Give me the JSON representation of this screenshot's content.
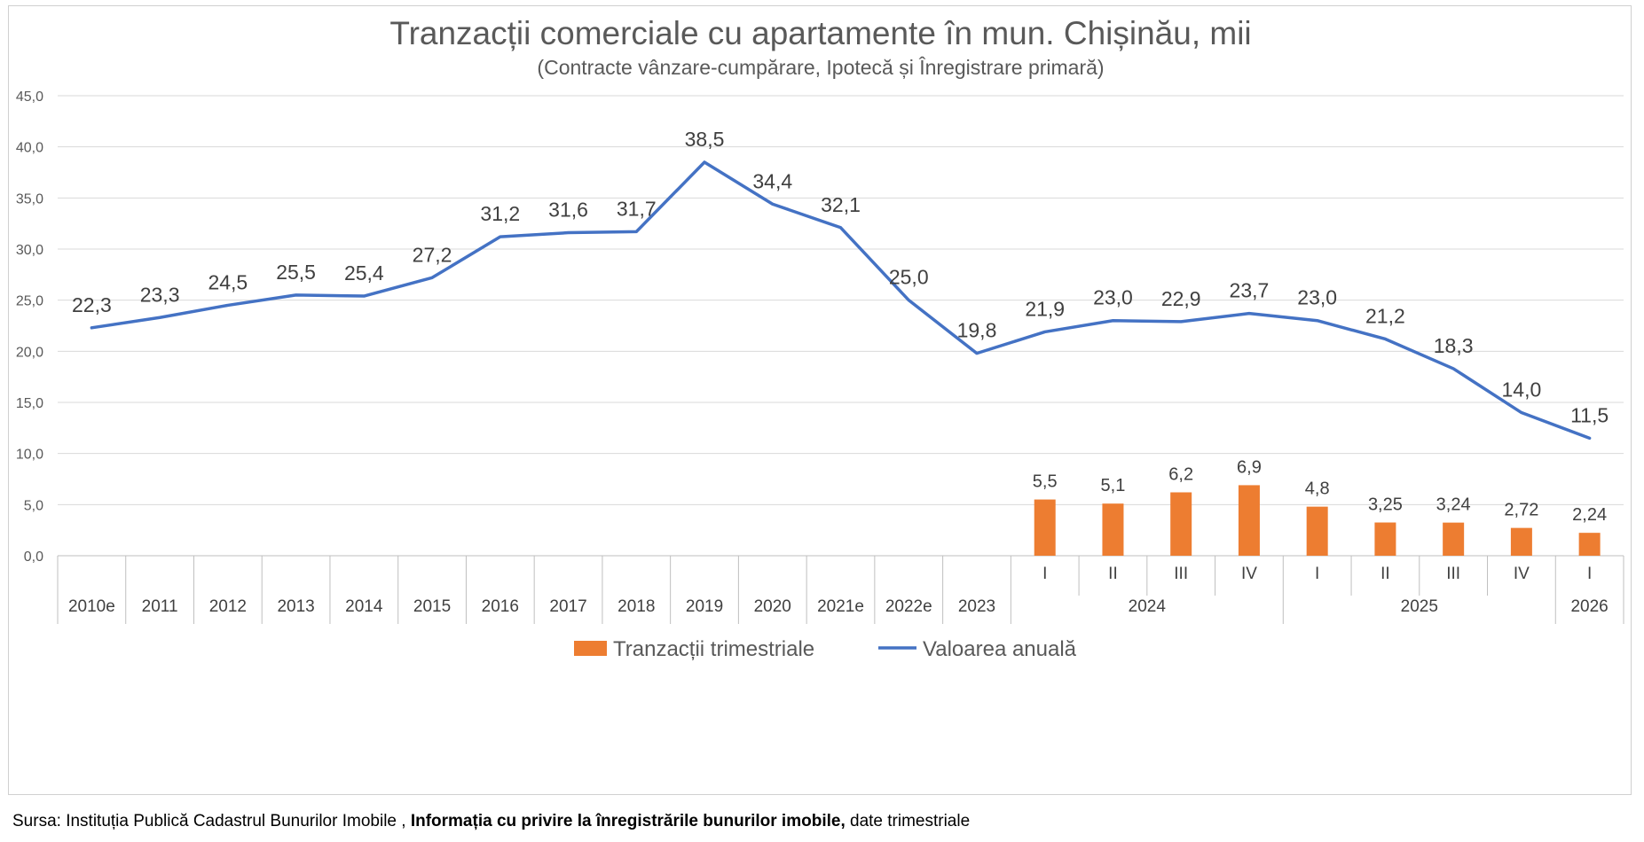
{
  "chart_data": {
    "type": "bar+line",
    "title": "Tranzacții comerciale cu apartamente în mun. Chișinău, mii",
    "subtitle": "(Contracte vânzare-cumpărare, Ipotecă și Înregistrare primară)",
    "ylim": [
      0,
      45
    ],
    "yticks": [
      "0,0",
      "5,0",
      "10,0",
      "15,0",
      "20,0",
      "25,0",
      "30,0",
      "35,0",
      "40,0",
      "45,0"
    ],
    "ytick_values": [
      0,
      5,
      10,
      15,
      20,
      25,
      30,
      35,
      40,
      45
    ],
    "categories": [
      "2010e",
      "2011",
      "2012",
      "2013",
      "2014",
      "2015",
      "2016",
      "2017",
      "2018",
      "2019",
      "2020",
      "2021e",
      "2022e",
      "2023",
      "I",
      "II",
      "III",
      "IV",
      "I",
      "II",
      "III",
      "IV",
      "I"
    ],
    "category_groups": [
      {
        "label": "2024",
        "count": 4
      },
      {
        "label": "2025",
        "count": 4
      },
      {
        "label": "2026",
        "count": 1
      }
    ],
    "grouped_start_index": 14,
    "series": [
      {
        "name": "Tranzacții trimestriale",
        "type": "bar",
        "color": "#ED7D31",
        "values": [
          null,
          null,
          null,
          null,
          null,
          null,
          null,
          null,
          null,
          null,
          null,
          null,
          null,
          null,
          5.5,
          5.1,
          6.2,
          6.9,
          4.8,
          3.25,
          3.24,
          2.72,
          2.24
        ],
        "labels": [
          "",
          "",
          "",
          "",
          "",
          "",
          "",
          "",
          "",
          "",
          "",
          "",
          "",
          "",
          "5,5",
          "5,1",
          "6,2",
          "6,9",
          "4,8",
          "3,25",
          "3,24",
          "2,72",
          "2,24"
        ]
      },
      {
        "name": "Valoarea anuală",
        "type": "line",
        "color": "#4472C4",
        "values": [
          22.3,
          23.3,
          24.5,
          25.5,
          25.4,
          27.2,
          31.2,
          31.6,
          31.7,
          38.5,
          34.4,
          32.1,
          25.0,
          19.8,
          21.9,
          23.0,
          22.9,
          23.7,
          23.0,
          21.2,
          18.3,
          14.0,
          11.5
        ],
        "labels": [
          "22,3",
          "23,3",
          "24,5",
          "25,5",
          "25,4",
          "27,2",
          "31,2",
          "31,6",
          "31,7",
          "38,5",
          "34,4",
          "32,1",
          "25,0",
          "19,8",
          "21,9",
          "23,0",
          "22,9",
          "23,7",
          "23,0",
          "21,2",
          "18,3",
          "14,0",
          "11,5"
        ]
      }
    ],
    "legend_position": "bottom",
    "gridlines": true
  },
  "source": {
    "prefix": "Sursa: Instituția Publică Cadastrul Bunurilor Imobile ,",
    "bold": "Informația cu privire la înregistrările bunurilor imobile,",
    "suffix": "date trimestriale"
  }
}
